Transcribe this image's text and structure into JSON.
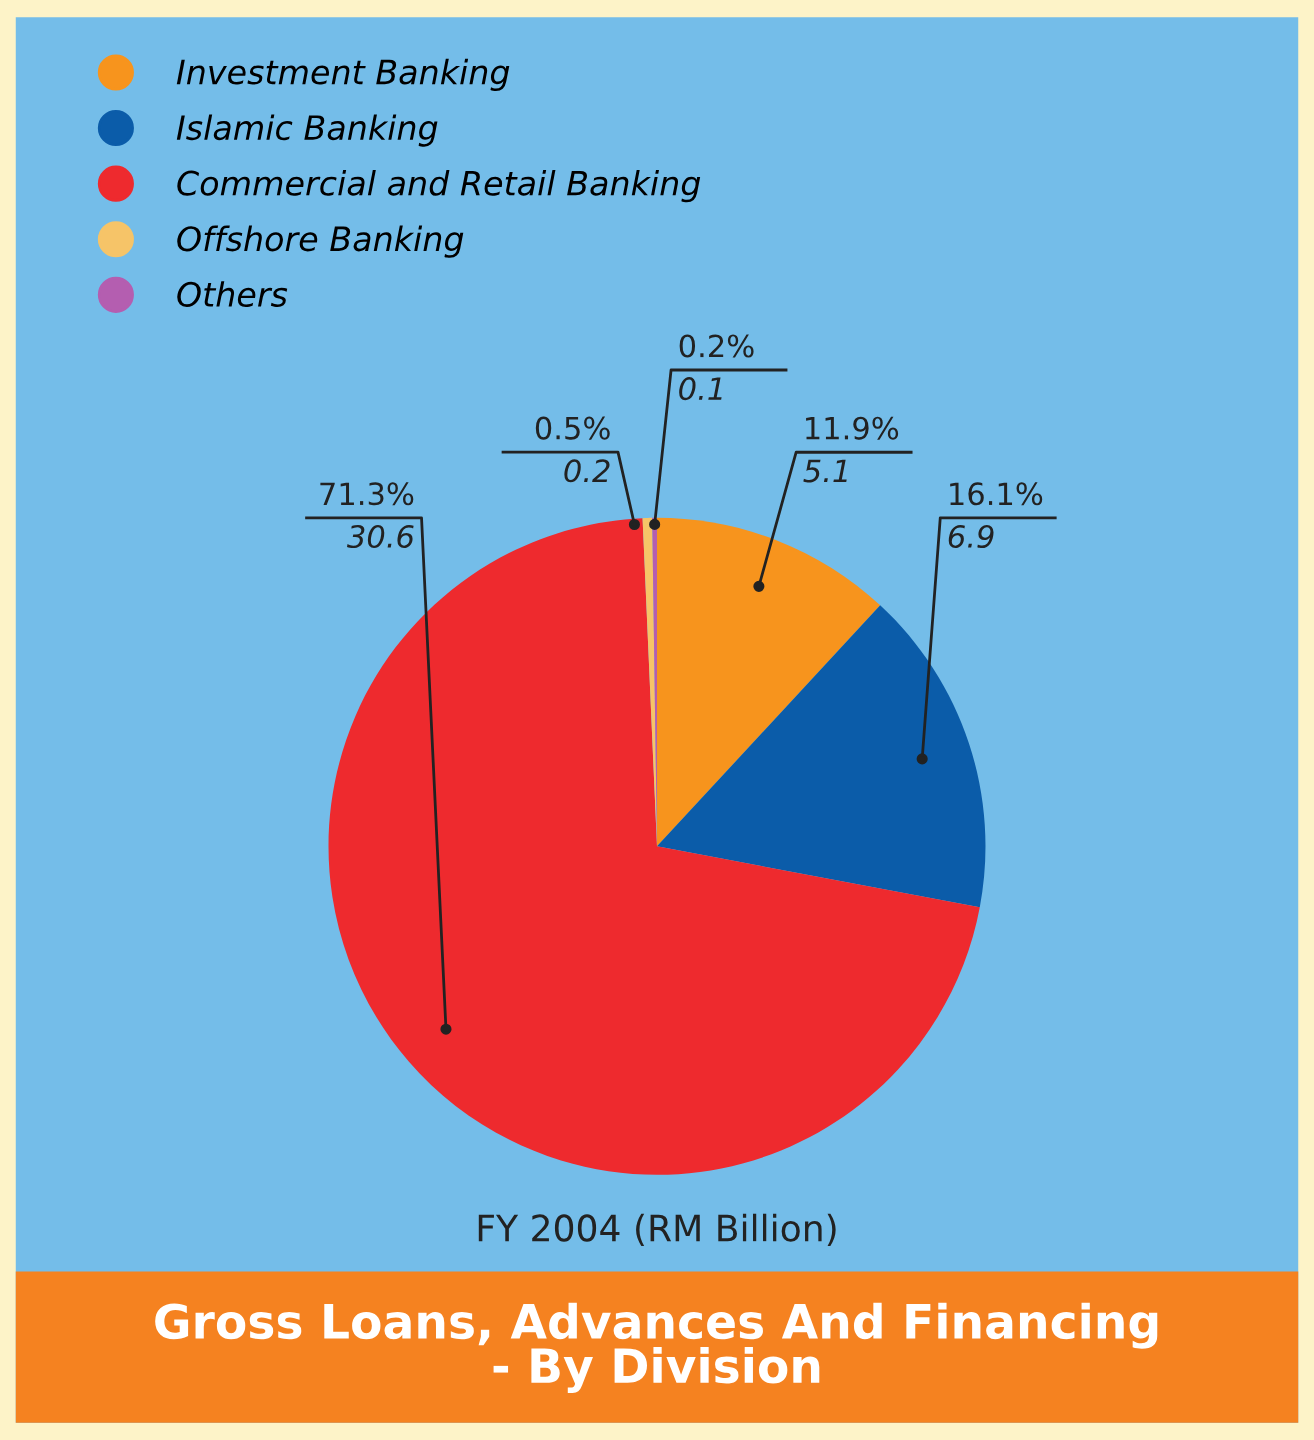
{
  "chart_data": {
    "type": "pie",
    "title": "Gross Loans, Advances And Financing\n- By Division",
    "xlabel": "FY 2004 (RM Billion)",
    "categories": [
      "Investment Banking",
      "Islamic Banking",
      "Commercial and Retail Banking",
      "Offshore Banking",
      "Others"
    ],
    "values": [
      5.1,
      6.9,
      30.6,
      0.2,
      0.1
    ],
    "value_labels": [
      "11.9%\n5.1",
      "16.1%\n6.9",
      "71.3%\n30.6",
      "0.5%\n0.2",
      "0.2%\n0.1"
    ],
    "colors": [
      "#f7941d",
      "#0b5ca9",
      "#ee2a2e",
      "#f6c468",
      "#b45eb0"
    ],
    "legend": "top left"
  }
}
